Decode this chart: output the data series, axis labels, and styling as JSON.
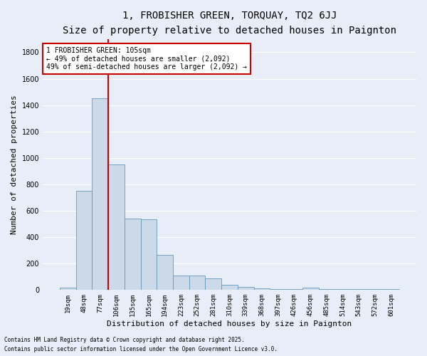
{
  "title_line1": "1, FROBISHER GREEN, TORQUAY, TQ2 6JJ",
  "title_line2": "Size of property relative to detached houses in Paignton",
  "xlabel": "Distribution of detached houses by size in Paignton",
  "ylabel": "Number of detached properties",
  "bar_color": "#ccd9e8",
  "bar_edge_color": "#6699bb",
  "background_color": "#e8eef8",
  "grid_color": "#ffffff",
  "categories": [
    "19sqm",
    "48sqm",
    "77sqm",
    "106sqm",
    "135sqm",
    "165sqm",
    "194sqm",
    "223sqm",
    "252sqm",
    "281sqm",
    "310sqm",
    "339sqm",
    "368sqm",
    "397sqm",
    "426sqm",
    "456sqm",
    "485sqm",
    "514sqm",
    "543sqm",
    "572sqm",
    "601sqm"
  ],
  "values": [
    20,
    750,
    1450,
    950,
    540,
    535,
    265,
    112,
    112,
    90,
    40,
    22,
    10,
    8,
    8,
    20,
    8,
    8,
    8,
    8,
    8
  ],
  "ylim": [
    0,
    1900
  ],
  "yticks": [
    0,
    200,
    400,
    600,
    800,
    1000,
    1200,
    1400,
    1600,
    1800
  ],
  "red_line_x": 2.5,
  "annotation_text": "1 FROBISHER GREEN: 105sqm\n← 49% of detached houses are smaller (2,092)\n49% of semi-detached houses are larger (2,092) →",
  "annotation_box_color": "#ffffff",
  "annotation_border_color": "#cc0000",
  "red_line_color": "#cc0000",
  "footer_line1": "Contains HM Land Registry data © Crown copyright and database right 2025.",
  "footer_line2": "Contains public sector information licensed under the Open Government Licence v3.0.",
  "title_fontsize": 10,
  "subtitle_fontsize": 9,
  "tick_fontsize": 6.5,
  "xlabel_fontsize": 8,
  "ylabel_fontsize": 8,
  "annot_fontsize": 7
}
